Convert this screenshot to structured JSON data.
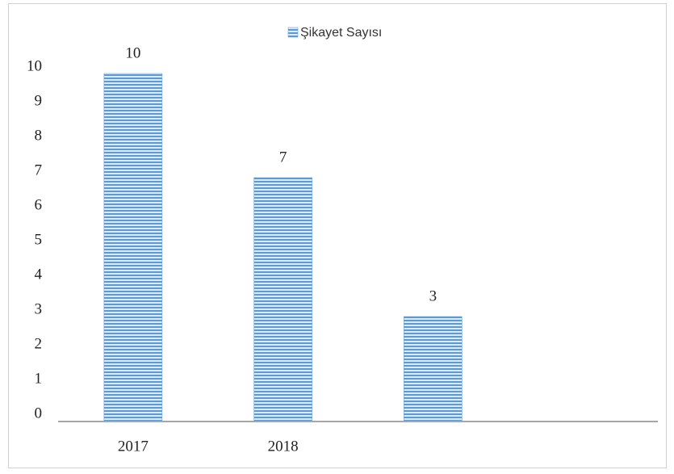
{
  "chart_data": {
    "type": "bar",
    "legend": "top",
    "categories": [
      "2017",
      "2018",
      null,
      null
    ],
    "series": [
      {
        "name": "Şikayet Sayısı",
        "color": "#5b9bd5",
        "values": [
          10,
          7,
          3,
          null
        ]
      }
    ],
    "ylim": [
      0,
      10
    ],
    "yticks": [
      0,
      1,
      2,
      3,
      4,
      5,
      6,
      7,
      8,
      9,
      10
    ],
    "grid": false
  }
}
